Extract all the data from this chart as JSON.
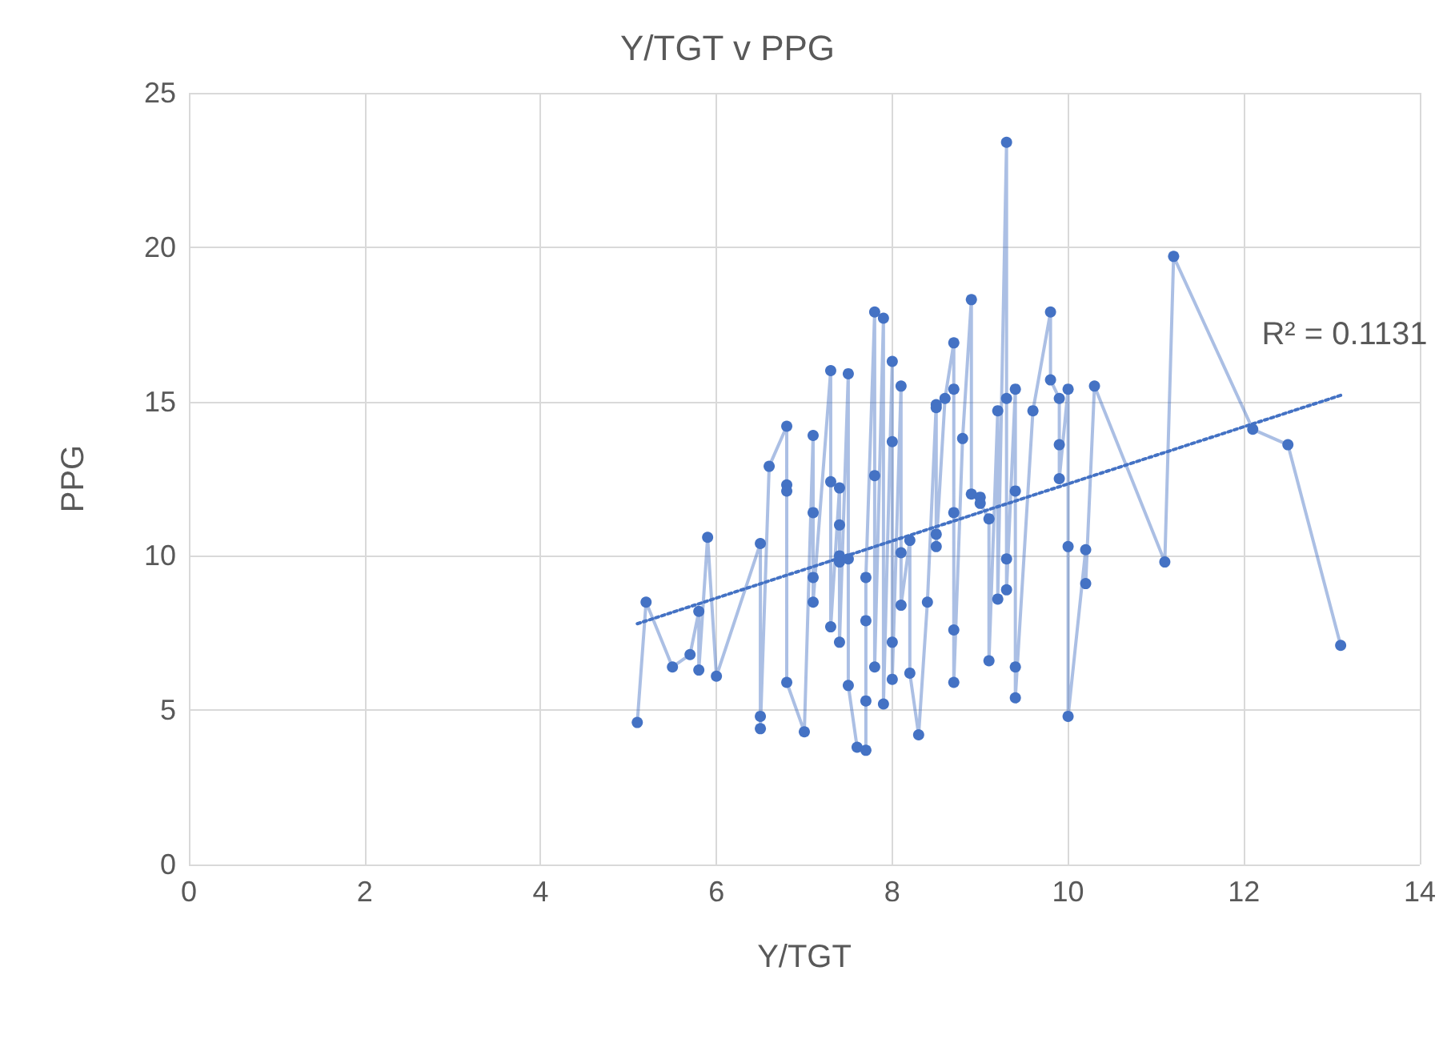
{
  "chart_data": {
    "type": "line",
    "title": "Y/TGT v PPG",
    "xlabel": "Y/TGT",
    "ylabel": "PPG",
    "xlim": [
      0,
      14
    ],
    "xticks": [
      0,
      2,
      4,
      6,
      8,
      10,
      12,
      14
    ],
    "ylim": [
      0,
      25
    ],
    "yticks": [
      0,
      5,
      10,
      15,
      20,
      25
    ],
    "grid": true,
    "marker": "circle",
    "series": [
      {
        "color": "#4472c4",
        "line_style": "solid",
        "x": [
          5.1,
          5.2,
          5.5,
          5.7,
          5.8,
          5.8,
          5.9,
          6.0,
          6.5,
          6.5,
          6.5,
          6.6,
          6.8,
          6.8,
          6.8,
          6.8,
          7.0,
          7.1,
          7.1,
          7.1,
          7.1,
          7.3,
          7.3,
          7.3,
          7.4,
          7.4,
          7.4,
          7.4,
          7.4,
          7.5,
          7.5,
          7.5,
          7.6,
          7.7,
          7.7,
          7.7,
          7.7,
          7.8,
          7.8,
          7.8,
          7.9,
          7.9,
          8.0,
          8.0,
          8.0,
          8.0,
          8.1,
          8.1,
          8.1,
          8.2,
          8.2,
          8.3,
          8.4,
          8.5,
          8.5,
          8.5,
          8.5,
          8.6,
          8.7,
          8.7,
          8.7,
          8.7,
          8.7,
          8.8,
          8.9,
          8.9,
          9.0,
          9.0,
          9.1,
          9.1,
          9.2,
          9.2,
          9.3,
          9.3,
          9.3,
          9.3,
          9.4,
          9.4,
          9.4,
          9.4,
          9.6,
          9.8,
          9.8,
          9.9,
          9.9,
          9.9,
          10.0,
          10.0,
          10.0,
          10.2,
          10.2,
          10.3,
          11.1,
          11.2,
          12.1,
          12.5,
          13.1
        ],
        "values": [
          4.6,
          8.5,
          6.4,
          6.8,
          8.2,
          6.3,
          10.6,
          6.1,
          10.4,
          4.8,
          4.4,
          12.9,
          14.2,
          12.3,
          12.1,
          5.9,
          4.3,
          13.9,
          11.4,
          9.3,
          8.5,
          16.0,
          12.4,
          7.7,
          12.2,
          11.0,
          10.0,
          9.8,
          7.2,
          15.9,
          9.9,
          5.8,
          3.8,
          3.7,
          5.3,
          7.9,
          9.3,
          17.9,
          12.6,
          6.4,
          17.7,
          5.2,
          16.3,
          13.7,
          7.2,
          6.0,
          15.5,
          10.1,
          8.4,
          10.5,
          6.2,
          4.2,
          8.5,
          14.9,
          14.8,
          10.7,
          10.3,
          15.1,
          16.9,
          15.4,
          11.4,
          7.6,
          5.9,
          13.8,
          18.3,
          12.0,
          11.9,
          11.7,
          11.2,
          6.6,
          14.7,
          8.6,
          23.4,
          15.1,
          9.9,
          8.9,
          15.4,
          12.1,
          6.4,
          5.4,
          14.7,
          17.9,
          15.7,
          15.1,
          13.6,
          12.5,
          15.4,
          10.3,
          4.8,
          10.2,
          9.1,
          15.5,
          9.8,
          19.7,
          14.1,
          13.6,
          7.1
        ]
      },
      {
        "type": "line",
        "color": "#4472c4",
        "line_style": "dotted",
        "marker": "none",
        "x": [
          5.1,
          13.1
        ],
        "values": [
          7.8,
          15.2
        ]
      }
    ],
    "annotations": [
      "R² = 0.1131"
    ]
  }
}
